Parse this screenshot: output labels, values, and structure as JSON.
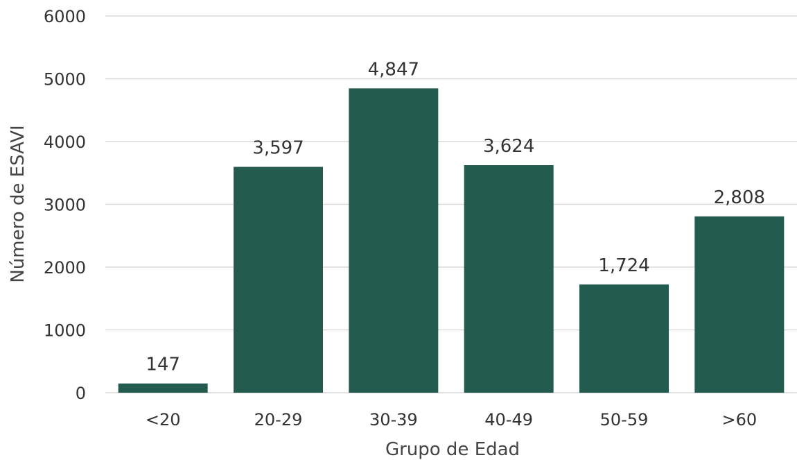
{
  "chart_data": {
    "type": "bar",
    "categories": [
      "<20",
      "20-29",
      "30-39",
      "40-49",
      "50-59",
      ">60"
    ],
    "values": [
      147,
      3597,
      4847,
      3624,
      1724,
      2808
    ],
    "data_labels": [
      "147",
      "3,597",
      "4,847",
      "3,624",
      "1,724",
      "2,808"
    ],
    "title": "",
    "xlabel": "Grupo de Edad",
    "ylabel": "Número de ESAVI",
    "ylim": [
      0,
      6000
    ],
    "yticks": [
      0,
      1000,
      2000,
      3000,
      4000,
      5000,
      6000
    ],
    "ytick_labels": [
      "0",
      "1000",
      "2000",
      "3000",
      "4000",
      "5000",
      "6000"
    ],
    "grid": true,
    "legend": "none",
    "colors": {
      "bar": "#245B4F",
      "grid": "#D9D9D9",
      "text": "#333333"
    }
  }
}
